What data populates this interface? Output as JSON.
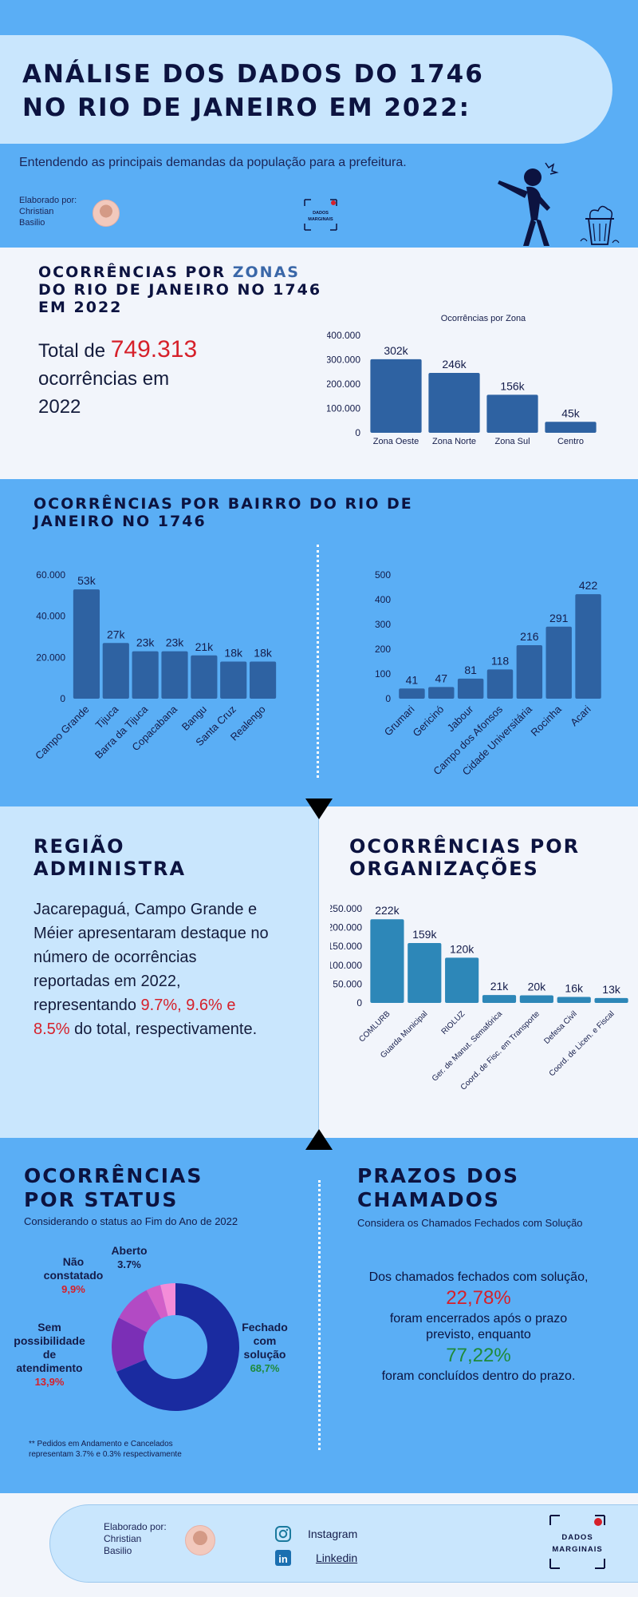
{
  "header": {
    "title_line1": "ANÁLISE DOS DADOS DO 1746",
    "title_line2": "NO RIO DE JANEIRO EM 2022:",
    "subtitle": "Entendendo as principais demandas da população para a prefeitura.",
    "byline_label": "Elaborado por:",
    "byline_name1": "Christian",
    "byline_name2": "Basilio",
    "logo_line1": "DADOS",
    "logo_line2": "MARGINAIS"
  },
  "zones": {
    "title_line1_a": "OCORRÊNCIAS POR ",
    "title_line1_b": "ZONAS",
    "title_line2": "DO RIO DE JANEIRO NO 1746",
    "title_line3": "EM 2022",
    "total_prefix": "Total de ",
    "total_value": "749.313",
    "total_suffix1": "ocorrências em",
    "total_suffix2": "2022"
  },
  "bairros": {
    "title_line1": "OCORRÊNCIAS POR BAIRRO DO RIO DE",
    "title_line2": "JANEIRO NO 1746"
  },
  "regiao": {
    "title_line1": "REGIÃO",
    "title_line2": "ADMINISTRA",
    "text_main": "Jacarepaguá, Campo Grande e Méier apresentaram destaque no número de ocorrências reportadas em 2022, representando ",
    "text_pcts": "9.7%, 9.6% e 8.5%",
    "text_end": " do total, respectivamente."
  },
  "orgs": {
    "title_line1": "OCORRÊNCIAS POR",
    "title_line2": "ORGANIZAÇÕES"
  },
  "status": {
    "title_line1": "OCORRÊNCIAS",
    "title_line2": "POR STATUS",
    "subtitle": "Considerando o status ao Fim do Ano de 2022",
    "note_line1": "** Pedidos em Andamento e Cancelados",
    "note_line2": "representam 3.7% e 0.3% respectivamente"
  },
  "prazos": {
    "title_line1": "PRAZOS DOS",
    "title_line2": "CHAMADOS",
    "subtitle": "Considera os Chamados Fechados com Solução",
    "line1": "Dos chamados fechados com solução,",
    "pct_late": "22,78%",
    "line2a": "foram encerrados após o prazo",
    "line2b": "previsto, enquanto",
    "pct_ontime": "77,22%",
    "line3": "foram concluídos dentro do prazo."
  },
  "footer": {
    "byline_label": "Elaborado por:",
    "byline_name1": "Christian",
    "byline_name2": "Basilio",
    "instagram": "Instagram",
    "linkedin": "Linkedin",
    "logo_line1": "DADOS",
    "logo_line2": "MARGINAIS"
  },
  "colors": {
    "bar_dark": "#2e62a2",
    "bar_teal": "#2d87b8",
    "accent_red": "#d6202a",
    "accent_green": "#1f8a3a",
    "navy": "#0c1340"
  },
  "chart_data": [
    {
      "type": "bar",
      "id": "zonas",
      "title": "Ocorrências por Zona",
      "categories": [
        "Zona Oeste",
        "Zona Norte",
        "Zona Sul",
        "Centro"
      ],
      "values": [
        302000,
        246000,
        156000,
        45000
      ],
      "data_labels": [
        "302k",
        "246k",
        "156k",
        "45k"
      ],
      "ylim": [
        0,
        400000
      ],
      "yticks": [
        "0",
        "100.000",
        "200.000",
        "300.000",
        "400.000"
      ]
    },
    {
      "type": "bar",
      "id": "bairros-top",
      "categories": [
        "Campo Grande",
        "Tijuca",
        "Barra da Tijuca",
        "Copacabana",
        "Bangu",
        "Santa Cruz",
        "Realengo"
      ],
      "values": [
        53000,
        27000,
        23000,
        23000,
        21000,
        18000,
        18000
      ],
      "data_labels": [
        "53k",
        "27k",
        "23k",
        "23k",
        "21k",
        "18k",
        "18k"
      ],
      "ylim": [
        0,
        60000
      ],
      "yticks": [
        "0",
        "20.000",
        "40.000",
        "60.000"
      ]
    },
    {
      "type": "bar",
      "id": "bairros-bottom",
      "categories": [
        "Grumari",
        "Gericinó",
        "Jabour",
        "Campo dos Afonsos",
        "Cidade Universitária",
        "Rocinha",
        "Acari"
      ],
      "values": [
        41,
        47,
        81,
        118,
        216,
        291,
        422
      ],
      "data_labels": [
        "41",
        "47",
        "81",
        "118",
        "216",
        "291",
        "422"
      ],
      "ylim": [
        0,
        500
      ],
      "yticks": [
        "0",
        "100",
        "200",
        "300",
        "400",
        "500"
      ]
    },
    {
      "type": "bar",
      "id": "organizacoes",
      "categories": [
        "COMLURB",
        "Guarda Municipal",
        "RIOLUZ",
        "Ger. de Manut. Semafórica",
        "Coord. de Fisc. em Transporte",
        "Defesa Civil",
        "Coord. de Licen. e Fiscal"
      ],
      "values": [
        222000,
        159000,
        120000,
        21000,
        20000,
        16000,
        13000
      ],
      "data_labels": [
        "222k",
        "159k",
        "120k",
        "21k",
        "20k",
        "16k",
        "13k"
      ],
      "ylim": [
        0,
        250000
      ],
      "yticks": [
        "0",
        "50.000",
        "100.000",
        "150.000",
        "200.000",
        "250.000"
      ]
    },
    {
      "type": "pie",
      "id": "status",
      "slices": [
        {
          "label_lines": [
            "Fechado",
            "com",
            "solução"
          ],
          "pct_label": "68,7%",
          "value": 68.7,
          "color": "#1a2ba0",
          "pct_color": "#1f8a3a"
        },
        {
          "label_lines": [
            "Sem",
            "possibilidade",
            "de",
            "atendimento"
          ],
          "pct_label": "13,9%",
          "value": 13.9,
          "color": "#7b2fb6",
          "pct_color": "#d6202a"
        },
        {
          "label_lines": [
            "Não",
            "constatado"
          ],
          "pct_label": "9,9%",
          "value": 9.9,
          "color": "#b24ac4",
          "pct_color": "#d6202a"
        },
        {
          "label_lines": [
            "Aberto"
          ],
          "pct_label": "3.7%",
          "value": 3.7,
          "color": "#d25fc8",
          "pct_color": "#141c4a"
        },
        {
          "label_lines": [],
          "pct_label": "",
          "value": 3.8,
          "color": "#f48cd8",
          "pct_color": "#141c4a"
        }
      ]
    }
  ]
}
